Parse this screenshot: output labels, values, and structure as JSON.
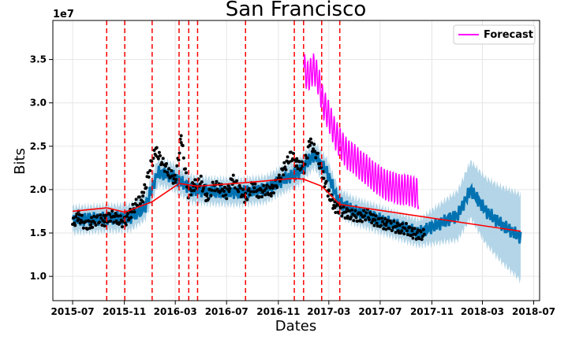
{
  "chart_data": {
    "type": "line",
    "title": "San Francisco",
    "xlabel": "Dates",
    "ylabel": "Bits",
    "y_multiplier_label": "1e7",
    "y_scale_unit": 10000000,
    "ylim": [
      0.72,
      3.95
    ],
    "xlim": [
      "2015-05-15",
      "2018-07-15"
    ],
    "x_ticks": [
      "2015-07",
      "2015-11",
      "2016-03",
      "2016-07",
      "2016-11",
      "2017-03",
      "2017-07",
      "2017-11",
      "2018-03",
      "2018-07"
    ],
    "y_ticks": [
      1.0,
      1.5,
      2.0,
      2.5,
      3.0,
      3.5
    ],
    "y_tick_labels": [
      "1.0",
      "1.5",
      "2.0",
      "2.5",
      "3.0",
      "3.5"
    ],
    "grid": true,
    "legend_position": "top-right",
    "legend": [
      "Forecast"
    ],
    "colors": {
      "forecast": "#ff00ff",
      "trend": "#ff0000",
      "changepoints": "#ff0000",
      "fit_line": "#0072b2",
      "uncertainty_band": "#a6cee3",
      "observed": "#000000"
    },
    "changepoints": [
      "2015-09-20",
      "2015-11-02",
      "2016-01-06",
      "2016-03-10",
      "2016-04-02",
      "2016-04-23",
      "2016-08-15",
      "2016-12-09",
      "2016-12-31",
      "2017-02-12",
      "2017-03-27"
    ],
    "trend": {
      "x": [
        "2015-07-01",
        "2015-09-20",
        "2015-11-02",
        "2016-01-06",
        "2016-03-10",
        "2016-04-23",
        "2016-08-15",
        "2016-12-09",
        "2016-12-31",
        "2017-02-12",
        "2017-03-27",
        "2018-05-31"
      ],
      "y": [
        1.75,
        1.79,
        1.74,
        1.86,
        2.07,
        2.04,
        2.08,
        2.13,
        2.12,
        2.04,
        1.83,
        1.52
      ]
    },
    "fit": {
      "x": [
        "2015-07-01",
        "2015-08-15",
        "2015-10-01",
        "2015-11-15",
        "2015-12-20",
        "2016-01-20",
        "2016-02-25",
        "2016-04-10",
        "2016-06-01",
        "2016-08-01",
        "2016-10-01",
        "2016-11-15",
        "2016-12-20",
        "2017-01-25",
        "2017-02-25",
        "2017-03-25",
        "2017-05-01",
        "2017-06-15",
        "2017-08-01",
        "2017-09-30",
        "2017-11-15",
        "2018-01-01",
        "2018-02-01",
        "2018-03-10",
        "2018-04-15",
        "2018-05-31"
      ],
      "y": [
        1.65,
        1.66,
        1.67,
        1.68,
        1.8,
        2.2,
        2.15,
        2.0,
        1.98,
        1.97,
        2.0,
        2.12,
        2.2,
        2.4,
        2.2,
        1.85,
        1.75,
        1.68,
        1.6,
        1.5,
        1.6,
        1.7,
        2.0,
        1.75,
        1.6,
        1.45
      ]
    },
    "forecast": {
      "name": "Forecast",
      "x": [
        "2017-01-01",
        "2017-01-10",
        "2017-01-25",
        "2017-02-05",
        "2017-02-15",
        "2017-03-01",
        "2017-03-15",
        "2017-04-01",
        "2017-04-15",
        "2017-05-01",
        "2017-05-15",
        "2017-06-01",
        "2017-06-15",
        "2017-07-01",
        "2017-07-15",
        "2017-08-01",
        "2017-08-15",
        "2017-09-01",
        "2017-09-15",
        "2017-09-30"
      ],
      "y": [
        3.4,
        3.3,
        3.4,
        3.25,
        3.0,
        2.85,
        2.65,
        2.5,
        2.4,
        2.35,
        2.28,
        2.22,
        2.15,
        2.1,
        2.05,
        2.03,
        2.0,
        2.0,
        1.98,
        1.95
      ]
    },
    "observed": {
      "x": [
        "2015-07-01",
        "2015-07-15",
        "2015-08-01",
        "2015-08-15",
        "2015-09-01",
        "2015-09-15",
        "2015-10-01",
        "2015-10-15",
        "2015-11-01",
        "2015-11-15",
        "2015-12-01",
        "2015-12-15",
        "2016-01-01",
        "2016-01-15",
        "2016-02-01",
        "2016-02-15",
        "2016-03-01",
        "2016-03-15",
        "2016-04-01",
        "2016-04-15",
        "2016-05-01",
        "2016-05-15",
        "2016-06-01",
        "2016-06-15",
        "2016-07-01",
        "2016-07-15",
        "2016-08-01",
        "2016-08-15",
        "2016-09-01",
        "2016-09-15",
        "2016-10-01",
        "2016-10-15",
        "2016-11-01",
        "2016-11-15",
        "2016-12-01",
        "2016-12-15",
        "2017-01-01",
        "2017-01-15",
        "2017-02-01",
        "2017-02-15",
        "2017-03-01",
        "2017-03-15",
        "2017-04-01",
        "2017-04-15",
        "2017-05-01",
        "2017-05-15",
        "2017-06-01",
        "2017-06-15",
        "2017-07-01",
        "2017-07-15",
        "2017-08-01",
        "2017-08-15",
        "2017-09-01",
        "2017-09-15",
        "2017-09-30"
      ],
      "y": [
        1.6,
        1.7,
        1.58,
        1.62,
        1.66,
        1.64,
        1.7,
        1.66,
        1.62,
        1.72,
        1.85,
        1.92,
        2.25,
        2.45,
        2.3,
        2.2,
        2.1,
        2.6,
        1.95,
        2.05,
        2.1,
        1.9,
        2.05,
        2.02,
        1.95,
        2.12,
        2.0,
        1.9,
        2.05,
        1.95,
        2.0,
        1.98,
        2.1,
        2.25,
        2.4,
        2.3,
        2.25,
        2.55,
        2.4,
        2.15,
        1.95,
        1.8,
        1.75,
        1.72,
        1.7,
        1.68,
        1.72,
        1.65,
        1.62,
        1.6,
        1.58,
        1.55,
        1.55,
        1.5,
        1.48
      ]
    }
  }
}
